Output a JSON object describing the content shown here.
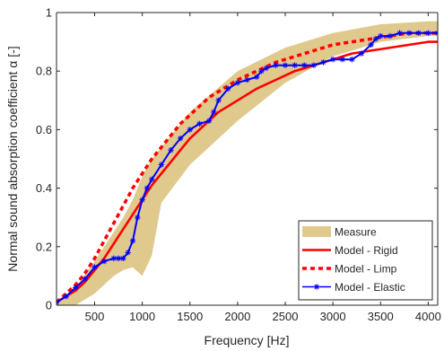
{
  "chart_data": {
    "type": "line",
    "title": "",
    "xlabel": "Frequency [Hz]",
    "ylabel": "Normal sound absorption coefficient α [-]",
    "xlim": [
      100,
      4100
    ],
    "ylim": [
      0,
      1
    ],
    "xticks": [
      {
        "value": 500,
        "label": "500"
      },
      {
        "value": 1000,
        "label": "1000"
      },
      {
        "value": 1500,
        "label": "1500"
      },
      {
        "value": 2000,
        "label": "2000"
      },
      {
        "value": 2500,
        "label": "2500"
      },
      {
        "value": 3000,
        "label": "3000"
      },
      {
        "value": 3500,
        "label": "3500"
      },
      {
        "value": 4000,
        "label": "4000"
      }
    ],
    "yticks": [
      {
        "value": 0,
        "label": "0"
      },
      {
        "value": 0.2,
        "label": "0.2"
      },
      {
        "value": 0.4,
        "label": "0.4"
      },
      {
        "value": 0.6,
        "label": "0.6"
      },
      {
        "value": 0.8,
        "label": "0.8"
      },
      {
        "value": 1,
        "label": "1"
      }
    ],
    "grid": false,
    "legend_position": "bottom-right",
    "measure_band": {
      "name": "Measure",
      "color": "#e0c98d",
      "x": [
        100,
        300,
        500,
        700,
        800,
        900,
        1000,
        1100,
        1200,
        1500,
        2000,
        2500,
        3000,
        3500,
        4000,
        4100
      ],
      "upper": [
        0.01,
        0.06,
        0.15,
        0.25,
        0.3,
        0.36,
        0.44,
        0.5,
        0.54,
        0.66,
        0.8,
        0.88,
        0.93,
        0.96,
        0.97,
        0.97
      ],
      "lower": [
        0.0,
        0.0,
        0.04,
        0.1,
        0.12,
        0.13,
        0.1,
        0.17,
        0.35,
        0.48,
        0.63,
        0.76,
        0.85,
        0.9,
        0.92,
        0.92
      ]
    },
    "series": [
      {
        "name": "Model - Rigid",
        "color": "#ff0000",
        "style": "solid",
        "x": [
          100,
          200,
          300,
          400,
          500,
          600,
          700,
          800,
          900,
          1000,
          1100,
          1200,
          1300,
          1400,
          1500,
          1600,
          1700,
          1800,
          1900,
          2000,
          2200,
          2400,
          2600,
          2800,
          3000,
          3200,
          3400,
          3600,
          3800,
          4000,
          4100
        ],
        "values": [
          0.01,
          0.03,
          0.05,
          0.08,
          0.12,
          0.16,
          0.21,
          0.26,
          0.31,
          0.36,
          0.41,
          0.45,
          0.49,
          0.53,
          0.57,
          0.6,
          0.63,
          0.66,
          0.68,
          0.7,
          0.74,
          0.77,
          0.8,
          0.82,
          0.84,
          0.86,
          0.87,
          0.88,
          0.89,
          0.9,
          0.9
        ]
      },
      {
        "name": "Model - Limp",
        "color": "#ff0000",
        "style": "dotted",
        "x": [
          100,
          200,
          300,
          400,
          500,
          600,
          700,
          800,
          900,
          1000,
          1100,
          1200,
          1300,
          1400,
          1500,
          1600,
          1700,
          1800,
          1900,
          2000,
          2200,
          2400,
          2600,
          2800,
          3000,
          3200,
          3400,
          3600,
          3800,
          4000,
          4100
        ],
        "values": [
          0.01,
          0.04,
          0.07,
          0.11,
          0.16,
          0.22,
          0.28,
          0.34,
          0.4,
          0.45,
          0.5,
          0.54,
          0.58,
          0.62,
          0.65,
          0.68,
          0.71,
          0.73,
          0.75,
          0.77,
          0.8,
          0.83,
          0.85,
          0.87,
          0.89,
          0.9,
          0.91,
          0.92,
          0.93,
          0.93,
          0.93
        ]
      },
      {
        "name": "Model - Elastic",
        "color": "#0000ff",
        "style": "solid-star",
        "x": [
          100,
          200,
          300,
          400,
          500,
          600,
          700,
          750,
          800,
          850,
          900,
          950,
          1000,
          1050,
          1100,
          1200,
          1300,
          1400,
          1500,
          1600,
          1700,
          1750,
          1800,
          1900,
          2000,
          2100,
          2200,
          2250,
          2300,
          2400,
          2500,
          2600,
          2700,
          2800,
          2900,
          3000,
          3100,
          3200,
          3300,
          3400,
          3450,
          3500,
          3600,
          3700,
          3800,
          3900,
          4000,
          4100
        ],
        "values": [
          0.01,
          0.03,
          0.06,
          0.09,
          0.13,
          0.15,
          0.16,
          0.16,
          0.16,
          0.18,
          0.22,
          0.3,
          0.36,
          0.4,
          0.43,
          0.48,
          0.53,
          0.57,
          0.6,
          0.62,
          0.63,
          0.66,
          0.7,
          0.74,
          0.76,
          0.77,
          0.78,
          0.8,
          0.81,
          0.82,
          0.82,
          0.82,
          0.82,
          0.82,
          0.83,
          0.84,
          0.84,
          0.84,
          0.86,
          0.89,
          0.91,
          0.92,
          0.92,
          0.93,
          0.93,
          0.93,
          0.93,
          0.93
        ]
      }
    ],
    "legend": [
      {
        "label": "Measure",
        "kind": "patch",
        "color": "#e0c98d"
      },
      {
        "label": "Model - Rigid",
        "kind": "line",
        "color": "#ff0000",
        "style": "solid"
      },
      {
        "label": "Model - Limp",
        "kind": "line",
        "color": "#ff0000",
        "style": "dotted"
      },
      {
        "label": "Model - Elastic",
        "kind": "line-star",
        "color": "#0000ff",
        "style": "solid"
      }
    ]
  }
}
